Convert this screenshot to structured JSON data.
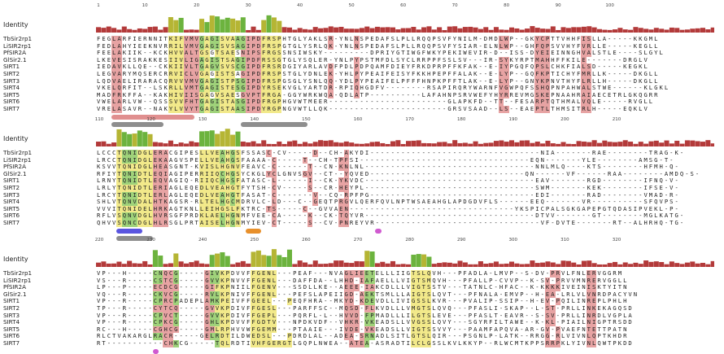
{
  "identity_label": "Identity",
  "blocks": [
    {
      "ruler": [
        "1",
        "10",
        "20",
        "30",
        "40",
        "50",
        "60",
        "70",
        "80",
        "90",
        "100"
      ],
      "labels": [
        "TbSir2rp1",
        "LiSIR2rp1",
        "PfSIR2A",
        "GlSir2.1",
        "SIRT1",
        "SIRT2",
        "SIRT3",
        "SIRT4",
        "SIRT5",
        "SIRT6",
        "SIRT7"
      ],
      "seqs": [
        "FEGLARFIERNNITKIFVMVGAGISVAAGIPDFRSPHTGLYAKLSR-YNLNSPEDAFSLPLLRQQPSVFYNILM-DMDLWP--GKYCPTTVHHFISLLA-----KKGML",
        "FEDLAHYIEEKNVRRILVMVGAGISVSAGIPDFRSPGTGLYSRLQK-YNLNSPEDAFSLPLLRQQPSVFYSIAR-ELNLWP--GHFQPSVVHYFVRLLE-----KEGLL",
        "FEELAKIIK--KCKHVVALTGSGTSAESNIPSFRGSSNSIWSKY---------DPRIYGTIWGFWKYPEKIWEVIR-D--ISS-DYEIEINNGHVALSTLE----SLGYL",
        "LKEVESISRAKKESIIVLIGAGISTSAGIPDFRSSGTGLYSQLER-YNLPYPSTMFDLSYCLRRPPFSSLSV---IR-SYKYRPTMAHHFFKILE-------DRGLV",
        "IEDAVKLLQE--CKKIIVLTGAGVSVSCGIPDFRSRDGIYARLAVDFPDLPDPQAMFDIEYFRKDPRPFFKFAK--E-IYPGQFQPSLCHKFIALSD-----KEGKL",
        "LEGVARYMQSERCRRVICLVGAGISTSAGIPDFRSPSTGLYDNLEK-YHLPYPEAIFEISYFKKHPEPFFALAK--E-LYP--GQFKPTICHYFMRLLK-----DKGLL",
        "LQDVAELIRARACQRVVVMVGAGISTPSGIPDFRSPGSGLYSNLQQ-YDLPYPEAIFELPFFFHNPKPFFTLAK--E-LYP--GNYKPNVTHYFLRLLH-----DKGLL",
        "VKELQRFIT--LSKRLLVMTGAGISTESGIPDYRSEKVGLYARTDR-RPIQHGDFV--------RSAPIRQRYWARNFVGWPQFSSHQPNPAHWALSTWE------KLGKL",
        "MADFRKFFA--KAKHIVIISGAGVSAESGVPTFRGA-GGYWRKWQA-QDLATP----------LAFAHNPSRVWEFYHYRREVMGSKEPNAAHRAIAECETRLGKQGRR",
        "VWELARLVW--QSSSVVFHTGAGISTASGIPDFRGPHGVWTMEER-----------------------GLAPKFD--TT--FESARPTQTHMALVQLE-----RVGLL",
        "VRELASAVR--NAKYLVVYTGAGISTAASIPDYRGPNGVWTLLQK-----------------------GRSVSAAD--LS--EAEPTLTHMSITRLH-----EQKLV"
      ],
      "hl": {
        "y": [
          14,
          15,
          16,
          20,
          21,
          23,
          24,
          25,
          26,
          32,
          33,
          34,
          35
        ],
        "r": [
          3,
          4,
          17,
          18,
          19,
          28,
          29,
          30,
          31,
          45,
          50,
          78,
          79,
          85,
          86,
          87,
          94,
          95
        ],
        "g": [
          20,
          22,
          23,
          27,
          28
        ]
      },
      "features": [
        "block1-feature-a",
        "block1-feature-b",
        "block1-feature-c"
      ]
    },
    {
      "ruler": [
        "110",
        "120",
        "130",
        "140",
        "150",
        "160",
        "170",
        "180",
        "190",
        "200",
        "210"
      ],
      "labels": [
        "TbSir2rp1",
        "LiSIR2rp1",
        "PfSIR2A",
        "GlSir2.1",
        "SIRT1",
        "SIRT2",
        "SIRT3",
        "SIRT4",
        "SIRT5",
        "SIRT6",
        "SIRT7"
      ],
      "seqs": [
        "LCCCTQNIDGLERACGIPESLLVEAHGSFSSASC-CV-----D--CH-AKYDI---------------------------------NIA-------RAE--------TRAG-K-",
        "LRCCTQNIDGLEKAAGVSPELLVEAHGSFAAAA-C-----T--CH-TPFSI---------------------------------EQN-------YLE--------AMSG-T-",
        "KSVVTQNIDGLHEASGNT-KVISLHGNVFEAVC-C------T--CN-KNLNL---------------------------------NNLMLQ----KTS--------HFMH-Q-",
        "RFIYTQNIDTLEQIAGIPERRIIQCHGSYCKGLYCLGNVSGV--CT--YQVED------------------------------QN------VF------RAA--------AMDQ-S-",
        "LRNYTQNIDTLEQVAGIQ-RIIQCHGSFATASC-L------I--CK-YKVDC---------------------------------EAV-------RGD--------IFNQ-V-",
        "LRLYTQNIDTLERIAGLEQEDLVEAHGTFYTSH-CV-----S--CR-HEYPL---------------------------------SWM-------KEK--------IFSE-V-",
        "LRCYTQNIDTLERLAGLEQEDLVEAHGTFASAT-C-------V--CQ-RPFPG--------------------------------EDI-------RAD--------VMAD-R-",
        "SHLVTQNVDALHTKAGSR-RLTELHGCMDRVLC-LD---C--GEQTPRGVLQERFQVLNPTWSAEAHGLAPDGDVFLS------EEQ-------VR----------SFQVPS-",
        "VVVITQNIDELHRKAGTKNLLEIHGSLFKTRC-TS-----C--GVVAEN--------------------------------YKSPICPALSGKGAPEPGTQDASIPVEKL-P-",
        "RFLVSQNVDGLHVRSGFPRDKLAELHGNMFVEE-CA-----K--CK-TQYVR---------------------------------DTVV-------GT--------MGLKATG-",
        "QHVVSQNCDGLHLRSGLPRTAISELHGNMYIEV-CT-----S--CV-PNREYVR--------------------------------VF-DVTE-------RT--ALHRHQ-TG-"
      ],
      "hl": {
        "y": [
          4,
          5,
          6,
          7,
          8,
          9,
          10,
          20,
          21,
          22,
          23,
          24,
          25,
          26,
          27
        ],
        "r": [
          11,
          12,
          13,
          33,
          34,
          40,
          41,
          42,
          47,
          48
        ],
        "g": [
          5,
          6,
          7,
          24,
          26
        ]
      },
      "features": [
        "block2-feature-a",
        "block2-feature-b",
        "block2-feature-c",
        "block2-feature-d"
      ]
    },
    {
      "ruler": [
        "220",
        "230",
        "240",
        "250",
        "260",
        "270",
        "280",
        "290",
        "300",
        "310",
        "320"
      ],
      "labels": [
        "TbSir2rp1",
        "LiSIR2rp1",
        "PfSIR2A",
        "GlSir2.1",
        "SIRT1",
        "SIRT2",
        "SIRT3",
        "SIRT4",
        "SIRT5",
        "SIRT6",
        "SIRT7"
      ],
      "seqs": [
        "VP---H-----CNQCG-----GIVKPDVVFFGENL---PEAF---NVAGLIEETELLLIIGTSLQVH---PFADLA-LMVP--S-DV-PRVLFNLERVGGRM",
        "VS---R-----CSTCG-----GVVKPNVVFFGENL---DAFFDA--LHHD-IAFAELLLVIGTSMQVH---PFALLP-CVVP--K-SV-PRVVMNRERVGGLL",
        "LP---P-----ECDCG-----GIFKPNIILFGENV---SSDLLKE--AEEE-IAKCDLLLVIGTSSTV---TATNLC-HFAC--K-KKKKIVEINISKTYITN",
        "VQ---R-----CKVCG-----RVLKPNIVFFGENL---PEFSLAPEIIGD-AEKTSMLLLAIGTSLQVT---PFNALA-EMVP--H-EA-LRLVLVNRDPACYVN",
        "VP---R-----CPRCPADEPLAMKPEIVFFGEEL---PEQFHRA--MKYD-KDEVDLLIVIGSSLKVR---PVALIP-SSIP--H-EV-PQILINREPLPHLH",
        "TP---R-----CYTCQ-----GVVKPDIVFFGESL---PARFFSC--MQSD-FLKVDLLLVMGTSLQVQ---PFASLI-SKAP--L-ST-PRLLINKEKAGQSD",
        "VP---R-----CPVCT-----GVVKPDIVFFGEPL---PQRFL-L--HVVD-FPMADLLLILGTSLEVE---PFASLT-EAVR--S-SV-PRLLINRDLVGPLA",
        "VP---R-----CPKCG-----GHLKPDVVFFGDTV---NPDKVDF--VHKR-VKEADSLLVVGSSLQVY---SGYRFILTAWE--K-KL-PIAILNIGPTRSDD",
        "RC---H-----CGHCG-----GMLRPHVVWFGEMM---PTAAIE---IVDE-VKEADSLLVIGTSSVVY---PAAMFAPQVA-AR-GV-PVAEFNTETTPATN",
        "RLCTVAKARGLRACR-----GELRDTILDWEDSL---PDRDLAL--ADEA-SRNADLSITLGTSLQIR---PSGNLP-LATK--RRGG-RLVIVNLQPTKHDR",
        "RT-----------CHKCG-----TQLRDTIVHFGERGTLGQPLNWEA--ATEA-ASRADTILCLGSSLKVLKKYP--RLWCMTKPPSRRPKLYIVNLQWTPKDD"
      ],
      "hl": {
        "y": [
          23,
          24,
          25,
          30,
          31,
          32,
          33,
          34,
          35,
          36,
          37,
          61,
          62,
          63,
          64
        ],
        "r": [
          11,
          12,
          13,
          14,
          15,
          21,
          22,
          48,
          49,
          50,
          51,
          52,
          53,
          87,
          88,
          89,
          95,
          96
        ],
        "g": [
          11,
          12,
          15,
          22,
          23,
          52,
          53
        ]
      },
      "features": [
        "block3-feature-a",
        "block3-feature-b"
      ]
    }
  ],
  "colors": {
    "identity_high": "#6cb33e",
    "identity_mid": "#b5b534",
    "identity_low": "#b33a3a",
    "feature_gray": "#8e8e8e",
    "feature_salmon": "#e08f8f",
    "feature_blue": "#5a55e0",
    "feature_orange": "#e8902b",
    "feature_magenta": "#d05ad0"
  }
}
